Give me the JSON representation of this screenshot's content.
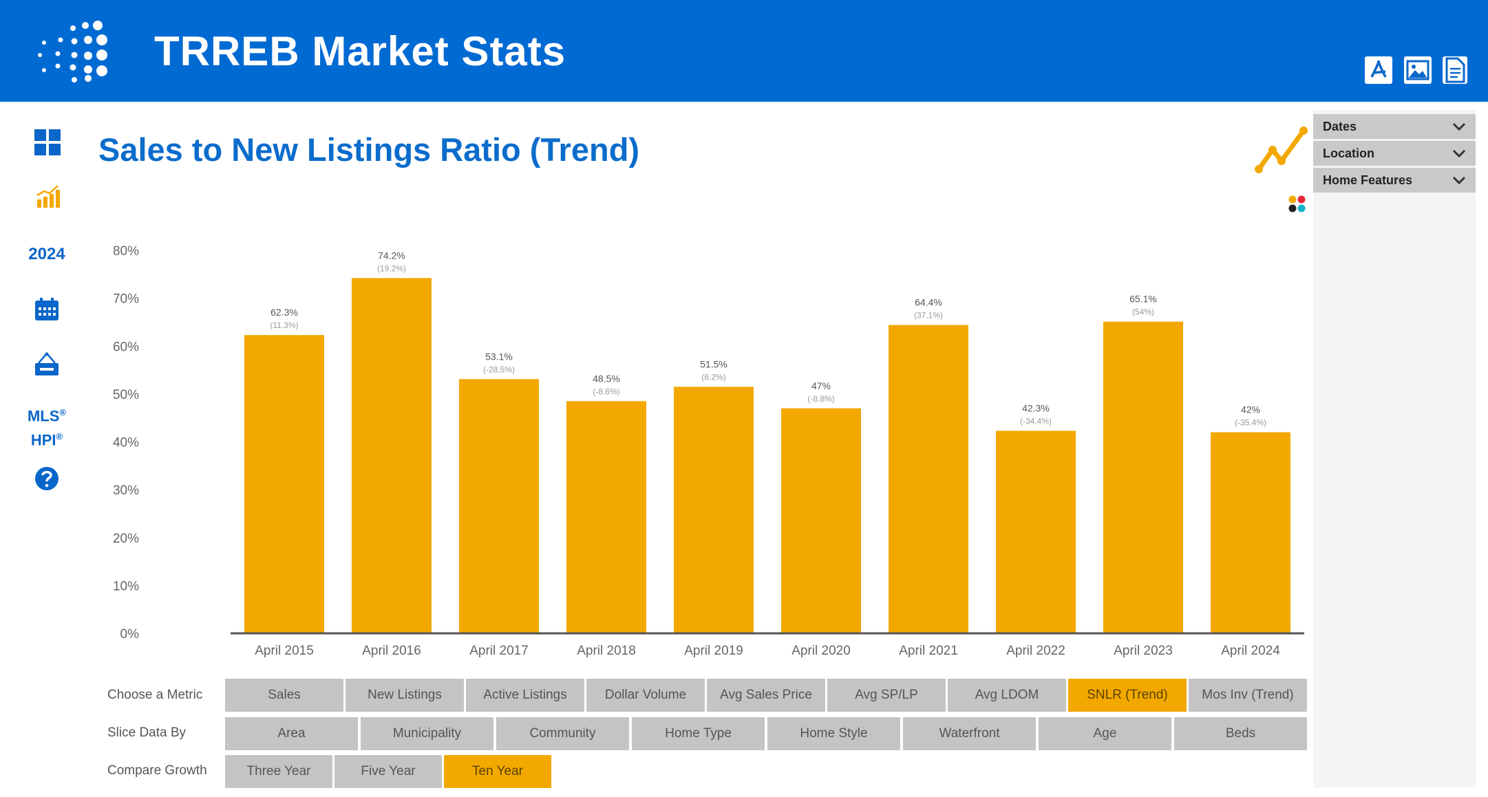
{
  "header": {
    "title": "TRREB Market Stats",
    "actions": [
      {
        "icon": "pdf-icon"
      },
      {
        "icon": "image-icon"
      },
      {
        "icon": "document-icon"
      }
    ]
  },
  "nav": {
    "dashboard_icon": "grid-icon",
    "chart_icon": "bar-chart-icon",
    "year_label": "2024",
    "calendar_icon": "calendar-icon",
    "rent_icon": "rent-sign-icon",
    "mls_line1": "MLS",
    "mls_line2": "HPI",
    "reg_mark": "®",
    "help_icon": "help-icon"
  },
  "page": {
    "title": "Sales to New Listings Ratio (Trend)",
    "trend_icon": "line-trend-icon",
    "palette_icon": "color-palette-icon"
  },
  "filters": [
    {
      "label": "Dates"
    },
    {
      "label": "Location"
    },
    {
      "label": "Home Features"
    }
  ],
  "colors": {
    "header": "#006ad3",
    "accent": "#f3a800",
    "button": "#c4c4c4",
    "title": "#0b6ccc"
  },
  "chart_data": {
    "type": "bar",
    "categories": [
      "April 2015",
      "April 2016",
      "April 2017",
      "April 2018",
      "April 2019",
      "April 2020",
      "April 2021",
      "April 2022",
      "April 2023",
      "April 2024"
    ],
    "values": [
      62.3,
      74.2,
      53.1,
      48.5,
      51.5,
      47,
      64.4,
      42.3,
      65.1,
      42
    ],
    "value_labels": [
      "62.3%",
      "74.2%",
      "53.1%",
      "48.5%",
      "51.5%",
      "47%",
      "64.4%",
      "42.3%",
      "65.1%",
      "42%"
    ],
    "change_labels": [
      "(11.3%)",
      "(19.2%)",
      "(-28.5%)",
      "(-8.6%)",
      "(6.2%)",
      "(-8.8%)",
      "(37.1%)",
      "(-34.4%)",
      "(54%)",
      "(-35.4%)"
    ],
    "y_ticks": [
      "0%",
      "10%",
      "20%",
      "30%",
      "40%",
      "50%",
      "60%",
      "70%",
      "80%"
    ],
    "ylim": [
      0,
      80
    ],
    "color": "#f3a800",
    "grid": false
  },
  "controls": {
    "metric": {
      "label": "Choose a Metric",
      "options": [
        "Sales",
        "New Listings",
        "Active Listings",
        "Dollar Volume",
        "Avg Sales Price",
        "Avg SP/LP",
        "Avg LDOM",
        "SNLR (Trend)",
        "Mos Inv (Trend)"
      ],
      "selected": "SNLR (Trend)"
    },
    "slice": {
      "label": "Slice Data By",
      "options": [
        "Area",
        "Municipality",
        "Community",
        "Home Type",
        "Home Style",
        "Waterfront",
        "Age",
        "Beds"
      ],
      "selected": ""
    },
    "growth": {
      "label": "Compare Growth",
      "options": [
        "Three Year",
        "Five Year",
        "Ten Year"
      ],
      "selected": "Ten Year"
    }
  }
}
